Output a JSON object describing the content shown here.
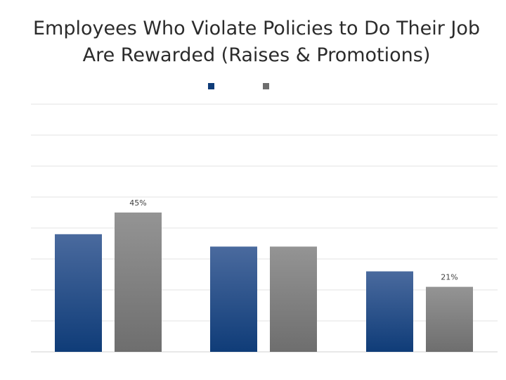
{
  "title": {
    "line1": "Employees Who Violate Policies to Do Their Job",
    "line2": "Are Rewarded (Raises & Promotions)"
  },
  "colors": {
    "series1_top": "#4a6a9e",
    "series1_bottom": "#0f3c78",
    "series2_top": "#949494",
    "series2_bottom": "#6e6e6e",
    "grid": "#e3e3e3",
    "axis": "#d0d0d0"
  },
  "chart_data": {
    "type": "bar",
    "title": "Employees Who Violate Policies to Do Their Job Are Rewarded (Raises & Promotions)",
    "categories": [
      "",
      "",
      ""
    ],
    "series": [
      {
        "values": [
          38,
          34,
          26
        ]
      },
      {
        "values": [
          45,
          34,
          21
        ]
      }
    ],
    "data_labels": [
      {
        "series": 1,
        "index": 0,
        "text": "45%"
      },
      {
        "series": 1,
        "index": 2,
        "text": "21%"
      }
    ],
    "ylim": [
      0,
      80
    ],
    "grid": true,
    "legend": "top-center"
  }
}
